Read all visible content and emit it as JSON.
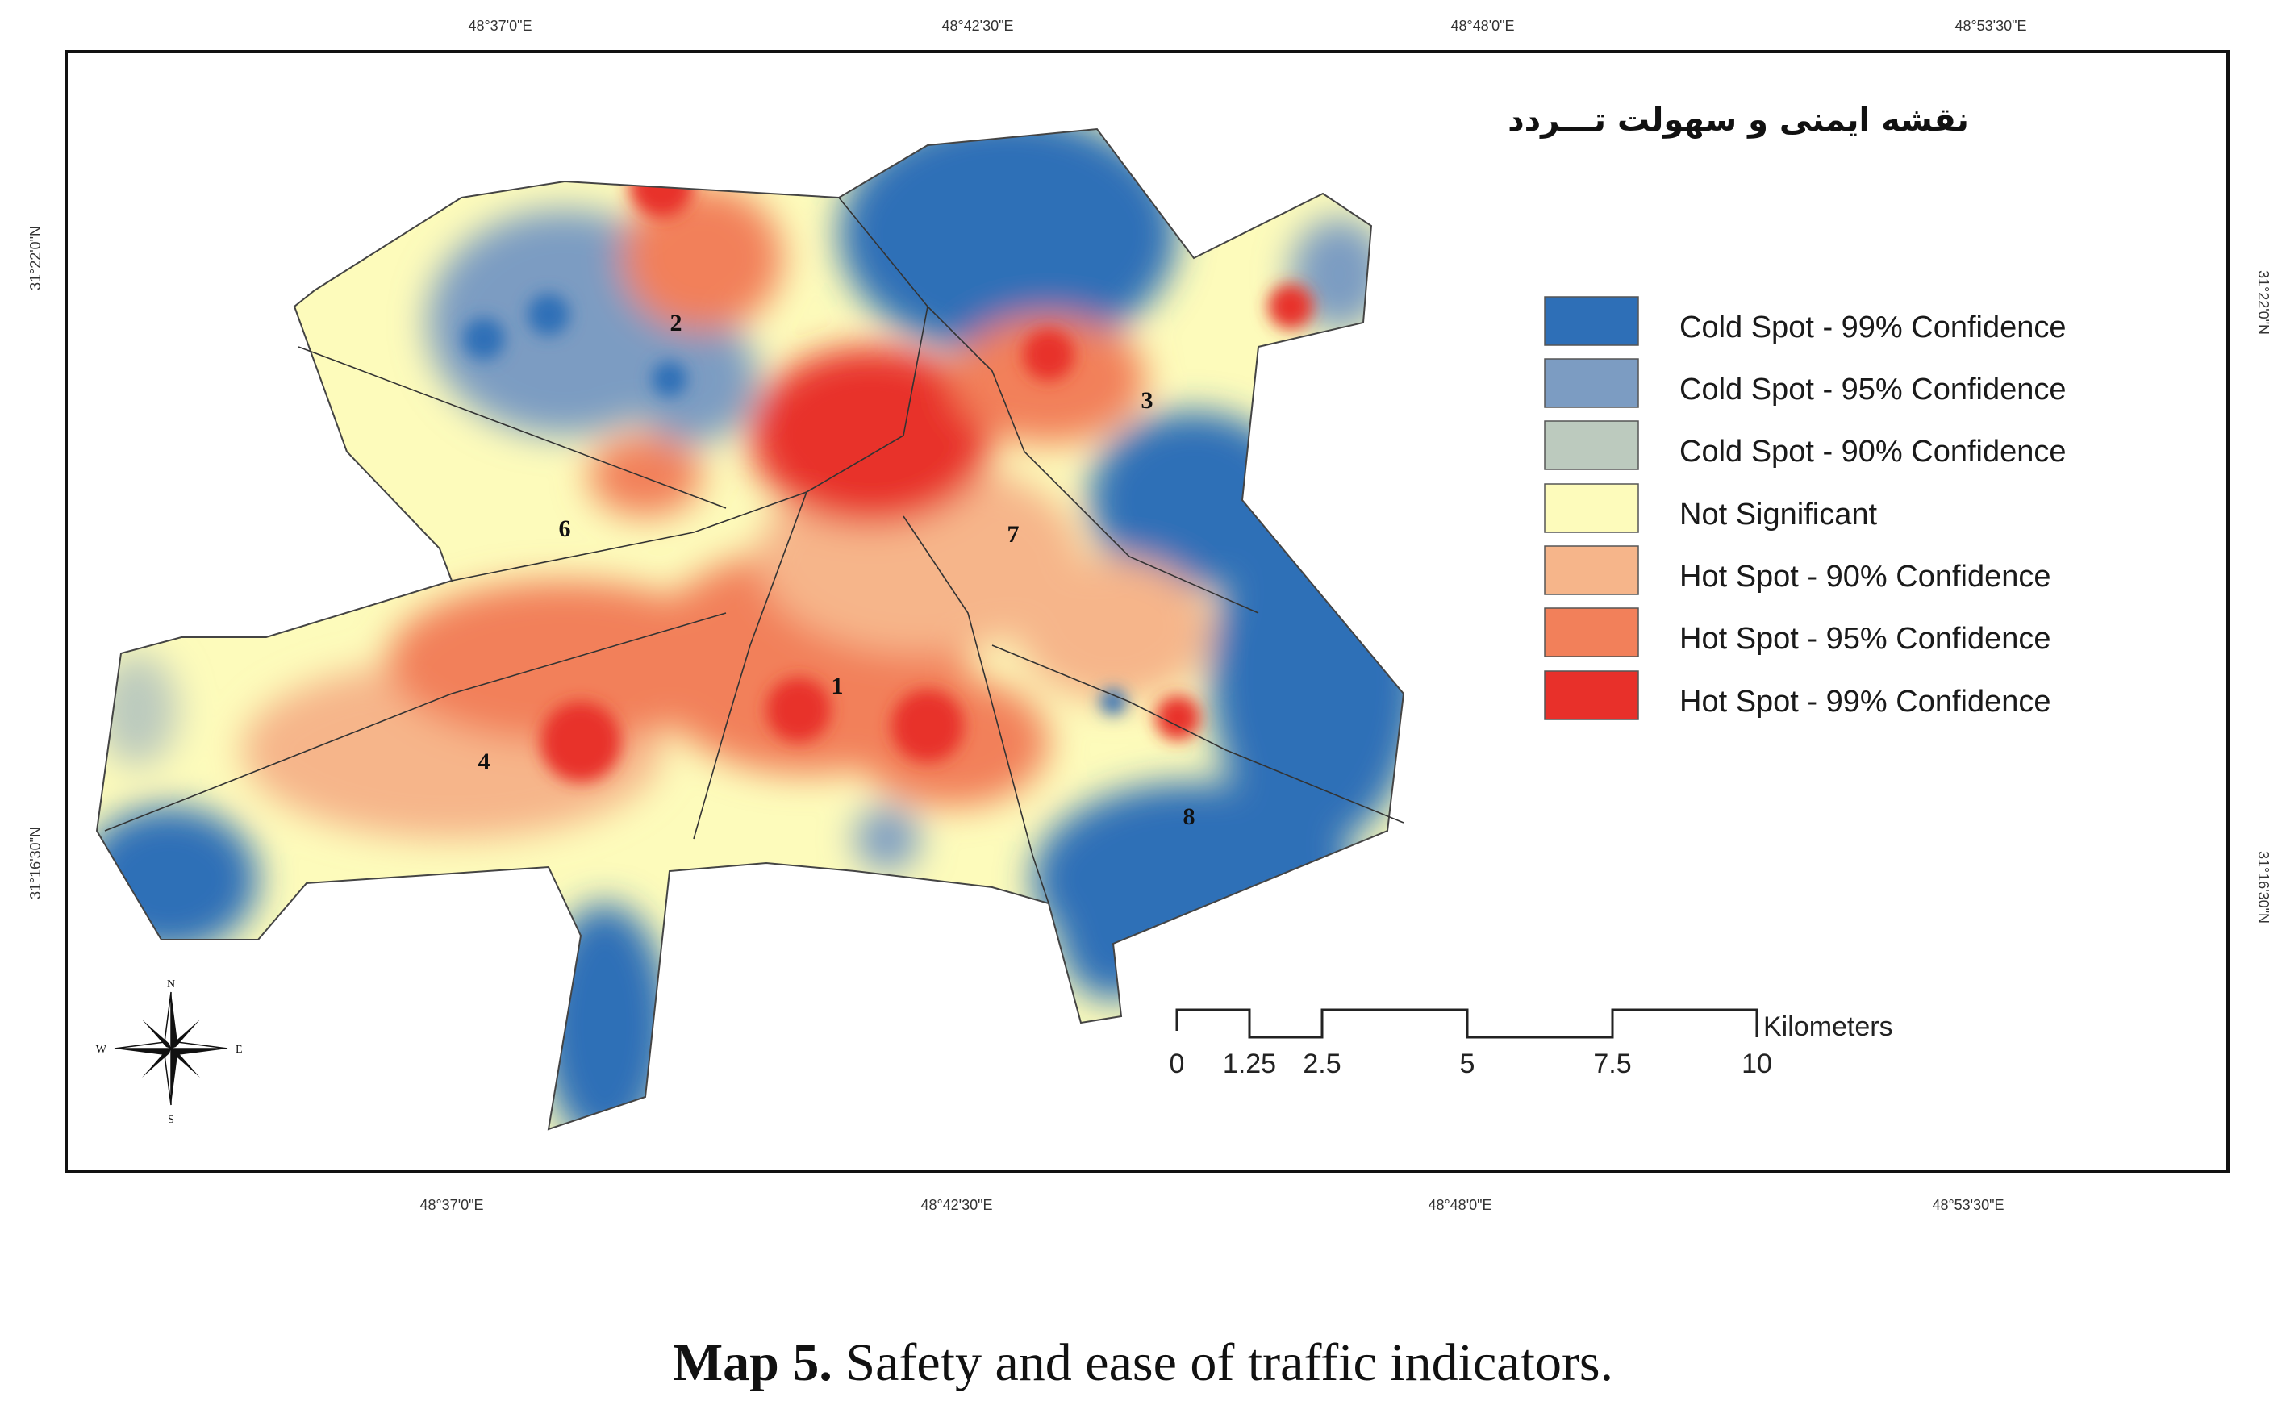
{
  "map": {
    "title": "نقشه ایمنی و سهولت تـــردد",
    "grid_labels": {
      "top": [
        "48°37'0\"E",
        "48°42'30\"E",
        "48°48'0\"E",
        "48°53'30\"E"
      ],
      "bottom": [
        "48°37'0\"E",
        "48°42'30\"E",
        "48°48'0\"E",
        "48°53'30\"E"
      ],
      "left": [
        "31°22'0\"N",
        "31°16'30\"N"
      ],
      "right": [
        "31°22'0\"N",
        "31°16'30\"N"
      ]
    },
    "zones": [
      "1",
      "2",
      "3",
      "4",
      "6",
      "7",
      "8"
    ],
    "compass": {
      "n": "N",
      "s": "S",
      "e": "E",
      "w": "W"
    }
  },
  "legend": [
    {
      "label": "Cold Spot - 99% Confidence",
      "color": "#2e6fb7"
    },
    {
      "label": "Cold Spot - 95% Confidence",
      "color": "#7c9cc2"
    },
    {
      "label": "Cold Spot - 90% Confidence",
      "color": "#bccabe"
    },
    {
      "label": "Not Significant",
      "color": "#fdfbbb"
    },
    {
      "label": "Hot Spot - 90% Confidence",
      "color": "#f6b58a"
    },
    {
      "label": "Hot Spot - 95% Confidence",
      "color": "#f2805a"
    },
    {
      "label": "Hot Spot - 99% Confidence",
      "color": "#e8302a"
    }
  ],
  "scale_bar": {
    "unit": "Kilometers",
    "ticks": [
      "0",
      "1.25",
      "2.5",
      "5",
      "7.5",
      "10"
    ]
  },
  "caption": {
    "bold": "Map 5.",
    "text": " Safety and ease of traffic indicators."
  }
}
